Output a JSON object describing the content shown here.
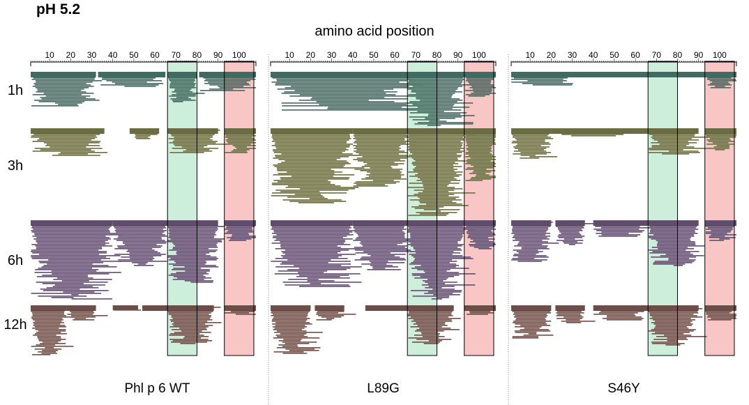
{
  "title": "pH 5.2",
  "chart_data": {
    "type": "peptide-coverage",
    "title": "pH 5.2",
    "xlabel": "amino acid position",
    "x_ticks": [
      10,
      20,
      30,
      40,
      50,
      60,
      70,
      80,
      90,
      100
    ],
    "xlim": [
      1,
      108
    ],
    "time_points": [
      "1h",
      "3h",
      "6h",
      "12h"
    ],
    "highlight_regions": [
      {
        "name": "green-region",
        "start": 66,
        "end": 80,
        "color": "#cdeedb"
      },
      {
        "name": "red-region",
        "start": 93,
        "end": 107,
        "color": "#f9c6c6"
      }
    ],
    "row_colors": {
      "1h": "#3f6b62",
      "3h": "#6b6b44",
      "6h": "#604d6c",
      "12h": "#6b4e47"
    },
    "panels": [
      {
        "label": "Phl p 6 WT",
        "rows": {
          "1h": [
            {
              "start": 1,
              "end": 32,
              "depth": 0.62
            },
            {
              "start": 33,
              "end": 65,
              "depth": 0.28
            },
            {
              "start": 66,
              "end": 80,
              "depth": 0.55
            },
            {
              "start": 81,
              "end": 108,
              "depth": 0.35
            }
          ],
          "3h": [
            {
              "start": 1,
              "end": 36,
              "depth": 0.32
            },
            {
              "start": 48,
              "end": 62,
              "depth": 0.12
            },
            {
              "start": 66,
              "end": 90,
              "depth": 0.28
            },
            {
              "start": 93,
              "end": 108,
              "depth": 0.28
            }
          ],
          "6h": [
            {
              "start": 1,
              "end": 40,
              "depth": 0.95
            },
            {
              "start": 40,
              "end": 66,
              "depth": 0.55
            },
            {
              "start": 66,
              "end": 90,
              "depth": 0.75
            },
            {
              "start": 93,
              "end": 108,
              "depth": 0.25
            }
          ],
          "12h": [
            {
              "start": 1,
              "end": 18,
              "depth": 0.98
            },
            {
              "start": 18,
              "end": 32,
              "depth": 0.3
            },
            {
              "start": 40,
              "end": 52,
              "depth": 0.1
            },
            {
              "start": 54,
              "end": 66,
              "depth": 0.12
            },
            {
              "start": 66,
              "end": 88,
              "depth": 0.75
            },
            {
              "start": 93,
              "end": 108,
              "depth": 0.2
            }
          ]
        }
      },
      {
        "label": "L89G",
        "rows": {
          "1h": [
            {
              "start": 1,
              "end": 70,
              "depth": 0.7
            },
            {
              "start": 66,
              "end": 93,
              "depth": 0.98
            },
            {
              "start": 93,
              "end": 108,
              "depth": 0.45
            }
          ],
          "3h": [
            {
              "start": 1,
              "end": 40,
              "depth": 0.85
            },
            {
              "start": 40,
              "end": 66,
              "depth": 0.65
            },
            {
              "start": 66,
              "end": 93,
              "depth": 0.98
            },
            {
              "start": 93,
              "end": 108,
              "depth": 0.6
            }
          ],
          "6h": [
            {
              "start": 1,
              "end": 40,
              "depth": 0.8
            },
            {
              "start": 40,
              "end": 66,
              "depth": 0.6
            },
            {
              "start": 66,
              "end": 93,
              "depth": 0.95
            },
            {
              "start": 93,
              "end": 108,
              "depth": 0.35
            }
          ],
          "12h": [
            {
              "start": 1,
              "end": 20,
              "depth": 0.95
            },
            {
              "start": 22,
              "end": 36,
              "depth": 0.3
            },
            {
              "start": 46,
              "end": 66,
              "depth": 0.12
            },
            {
              "start": 66,
              "end": 88,
              "depth": 0.75
            },
            {
              "start": 93,
              "end": 108,
              "depth": 0.2
            }
          ]
        }
      },
      {
        "label": "S46Y",
        "rows": {
          "1h": [
            {
              "start": 1,
              "end": 30,
              "depth": 0.25
            },
            {
              "start": 30,
              "end": 93,
              "depth": 0.1
            },
            {
              "start": 93,
              "end": 108,
              "depth": 0.3
            }
          ],
          "3h": [
            {
              "start": 1,
              "end": 20,
              "depth": 0.35
            },
            {
              "start": 20,
              "end": 66,
              "depth": 0.1
            },
            {
              "start": 66,
              "end": 90,
              "depth": 0.3
            },
            {
              "start": 93,
              "end": 108,
              "depth": 0.25
            }
          ],
          "6h": [
            {
              "start": 1,
              "end": 20,
              "depth": 0.5
            },
            {
              "start": 22,
              "end": 36,
              "depth": 0.3
            },
            {
              "start": 40,
              "end": 66,
              "depth": 0.2
            },
            {
              "start": 66,
              "end": 90,
              "depth": 0.55
            },
            {
              "start": 93,
              "end": 108,
              "depth": 0.25
            }
          ],
          "12h": [
            {
              "start": 1,
              "end": 20,
              "depth": 0.65
            },
            {
              "start": 22,
              "end": 36,
              "depth": 0.35
            },
            {
              "start": 40,
              "end": 66,
              "depth": 0.3
            },
            {
              "start": 66,
              "end": 90,
              "depth": 0.78
            },
            {
              "start": 93,
              "end": 108,
              "depth": 0.3
            }
          ]
        }
      }
    ]
  }
}
